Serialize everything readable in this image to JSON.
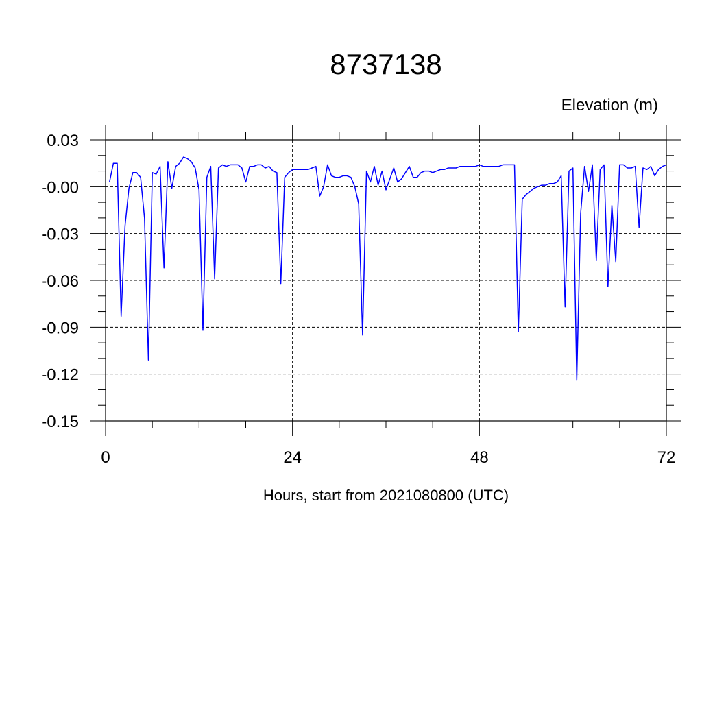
{
  "chart_data": {
    "type": "line",
    "title": "8737138",
    "ylabel": "Elevation (m)",
    "xlabel": "Hours, start from 2021080800 (UTC)",
    "xlim": [
      0,
      72
    ],
    "ylim": [
      -0.15,
      0.03
    ],
    "x_ticks": [
      0,
      24,
      48,
      72
    ],
    "x_tick_labels": [
      "0",
      "24",
      "48",
      "72"
    ],
    "y_ticks": [
      0.03,
      0.0,
      -0.03,
      -0.06,
      -0.09,
      -0.12,
      -0.15
    ],
    "y_tick_labels": [
      "0.03",
      "-0.00",
      "-0.03",
      "-0.06",
      "-0.09",
      "-0.12",
      "-0.15"
    ],
    "grid": true,
    "line_color": "#0000ff",
    "series": [
      {
        "x": [
          0.5,
          1.0,
          1.5,
          2.0,
          2.5,
          3.0,
          3.5,
          4.0,
          4.5,
          5.0,
          5.5,
          6.0,
          6.5,
          7.0,
          7.5,
          8.0,
          8.5,
          9.0,
          9.5,
          10.0,
          10.5,
          11.0,
          11.5,
          12.0,
          12.5,
          13.0,
          13.5,
          14.0,
          14.5,
          15.0,
          15.5,
          16.0,
          16.5,
          17.0,
          17.5,
          18.0,
          18.5,
          19.0,
          19.5,
          20.0,
          20.5,
          21.0,
          21.5,
          22.0,
          22.5,
          23.0,
          23.5,
          24.0,
          24.5,
          25.0,
          25.5,
          26.0,
          26.5,
          27.0,
          27.5,
          28.0,
          28.5,
          29.0,
          29.5,
          30.0,
          30.5,
          31.0,
          31.5,
          32.0,
          32.5,
          33.0,
          33.5,
          34.0,
          34.5,
          35.0,
          35.5,
          36.0,
          36.5,
          37.0,
          37.5,
          38.0,
          38.5,
          39.0,
          39.5,
          40.0,
          40.5,
          41.0,
          41.5,
          42.0,
          42.5,
          43.0,
          43.5,
          44.0,
          44.5,
          45.0,
          45.5,
          46.0,
          46.5,
          47.0,
          47.5,
          48.0,
          48.5,
          49.0,
          49.5,
          50.0,
          50.5,
          51.0,
          51.5,
          52.0,
          52.5,
          53.0,
          53.5,
          54.0,
          54.5,
          55.0,
          55.5,
          56.0,
          56.5,
          57.0,
          57.5,
          58.0,
          58.5,
          59.0,
          59.5,
          60.0,
          60.5,
          61.0,
          61.5,
          62.0,
          62.5,
          63.0,
          63.5,
          64.0,
          64.5,
          65.0,
          65.5,
          66.0,
          66.5,
          67.0,
          67.5,
          68.0,
          68.5,
          69.0,
          69.5,
          70.0,
          70.5,
          71.0,
          71.5,
          72.0
        ],
        "values": [
          0.003,
          0.015,
          0.015,
          -0.083,
          -0.025,
          -0.001,
          0.009,
          0.009,
          0.006,
          -0.02,
          -0.111,
          0.009,
          0.008,
          0.013,
          -0.052,
          0.016,
          -0.001,
          0.013,
          0.015,
          0.019,
          0.018,
          0.016,
          0.012,
          -0.002,
          -0.092,
          0.006,
          0.013,
          -0.059,
          0.012,
          0.014,
          0.013,
          0.014,
          0.014,
          0.014,
          0.012,
          0.003,
          0.013,
          0.013,
          0.014,
          0.014,
          0.012,
          0.013,
          0.01,
          0.009,
          -0.062,
          0.006,
          0.009,
          0.011,
          0.011,
          0.011,
          0.011,
          0.011,
          0.012,
          0.013,
          -0.006,
          0.0,
          0.014,
          0.007,
          0.006,
          0.006,
          0.007,
          0.007,
          0.006,
          0.0,
          -0.011,
          -0.095,
          0.01,
          0.003,
          0.013,
          0.001,
          0.01,
          -0.002,
          0.005,
          0.012,
          0.003,
          0.005,
          0.009,
          0.013,
          0.006,
          0.006,
          0.009,
          0.01,
          0.01,
          0.009,
          0.01,
          0.011,
          0.011,
          0.012,
          0.012,
          0.012,
          0.013,
          0.013,
          0.013,
          0.013,
          0.013,
          0.014,
          0.013,
          0.013,
          0.013,
          0.013,
          0.013,
          0.014,
          0.014,
          0.014,
          0.014,
          -0.093,
          -0.008,
          -0.005,
          -0.003,
          -0.001,
          0.0,
          0.001,
          0.001,
          0.002,
          0.002,
          0.003,
          0.007,
          -0.077,
          0.01,
          0.012,
          -0.124,
          -0.017,
          0.013,
          -0.003,
          0.014,
          -0.047,
          0.011,
          0.014,
          -0.064,
          -0.012,
          -0.048,
          0.014,
          0.014,
          0.012,
          0.012,
          0.013,
          -0.026,
          0.012,
          0.011,
          0.013,
          0.007,
          0.011,
          0.013,
          0.014
        ]
      }
    ]
  }
}
